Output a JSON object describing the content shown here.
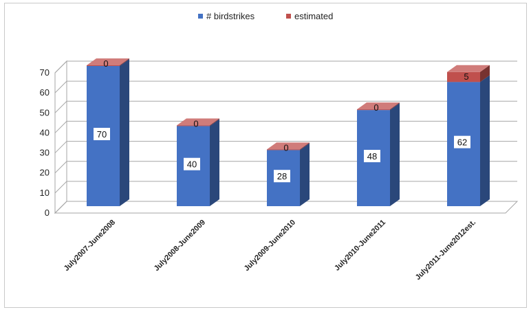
{
  "chart_data": {
    "type": "bar",
    "stacked": true,
    "three_d": true,
    "categories": [
      "July2007-June2008",
      "July2008-June2009",
      "July2009-June2010",
      "July2010-June2011",
      "July2011-June2012est."
    ],
    "series": [
      {
        "name": "# birdstrikes",
        "values": [
          70,
          40,
          28,
          48,
          62
        ],
        "color": "#4472c4"
      },
      {
        "name": "estimated",
        "values": [
          0,
          0,
          0,
          0,
          5
        ],
        "color": "#c0504d"
      }
    ],
    "yticks": [
      0,
      10,
      20,
      30,
      40,
      50,
      60,
      70
    ],
    "ylim": [
      0,
      70
    ],
    "grid": true,
    "legend_position": "top"
  }
}
